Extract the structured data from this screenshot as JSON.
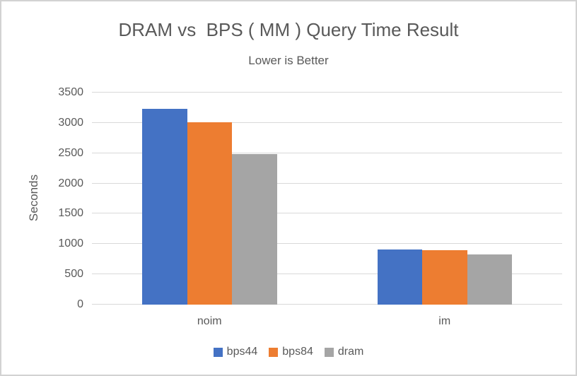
{
  "window": {
    "background": "#ffffff",
    "border_color": "#d2d2d2",
    "text_color": "#595959"
  },
  "chart_data": {
    "type": "bar",
    "title": "DRAM vs  BPS ( MM ) Query Time Result",
    "subtitle": "Lower is Better",
    "xlabel": "",
    "ylabel": "Seconds",
    "categories": [
      "noim",
      "im"
    ],
    "series": [
      {
        "name": "bps44",
        "color": "#4472C4",
        "values": [
          3230,
          915
        ]
      },
      {
        "name": "bps84",
        "color": "#ED7D31",
        "values": [
          3010,
          900
        ]
      },
      {
        "name": "dram",
        "color": "#A5A5A5",
        "values": [
          2480,
          830
        ]
      }
    ],
    "ylim": [
      0,
      3500
    ],
    "yticks": [
      0,
      500,
      1000,
      1500,
      2000,
      2500,
      3000,
      3500
    ],
    "grid": true,
    "legend_position": "bottom"
  }
}
